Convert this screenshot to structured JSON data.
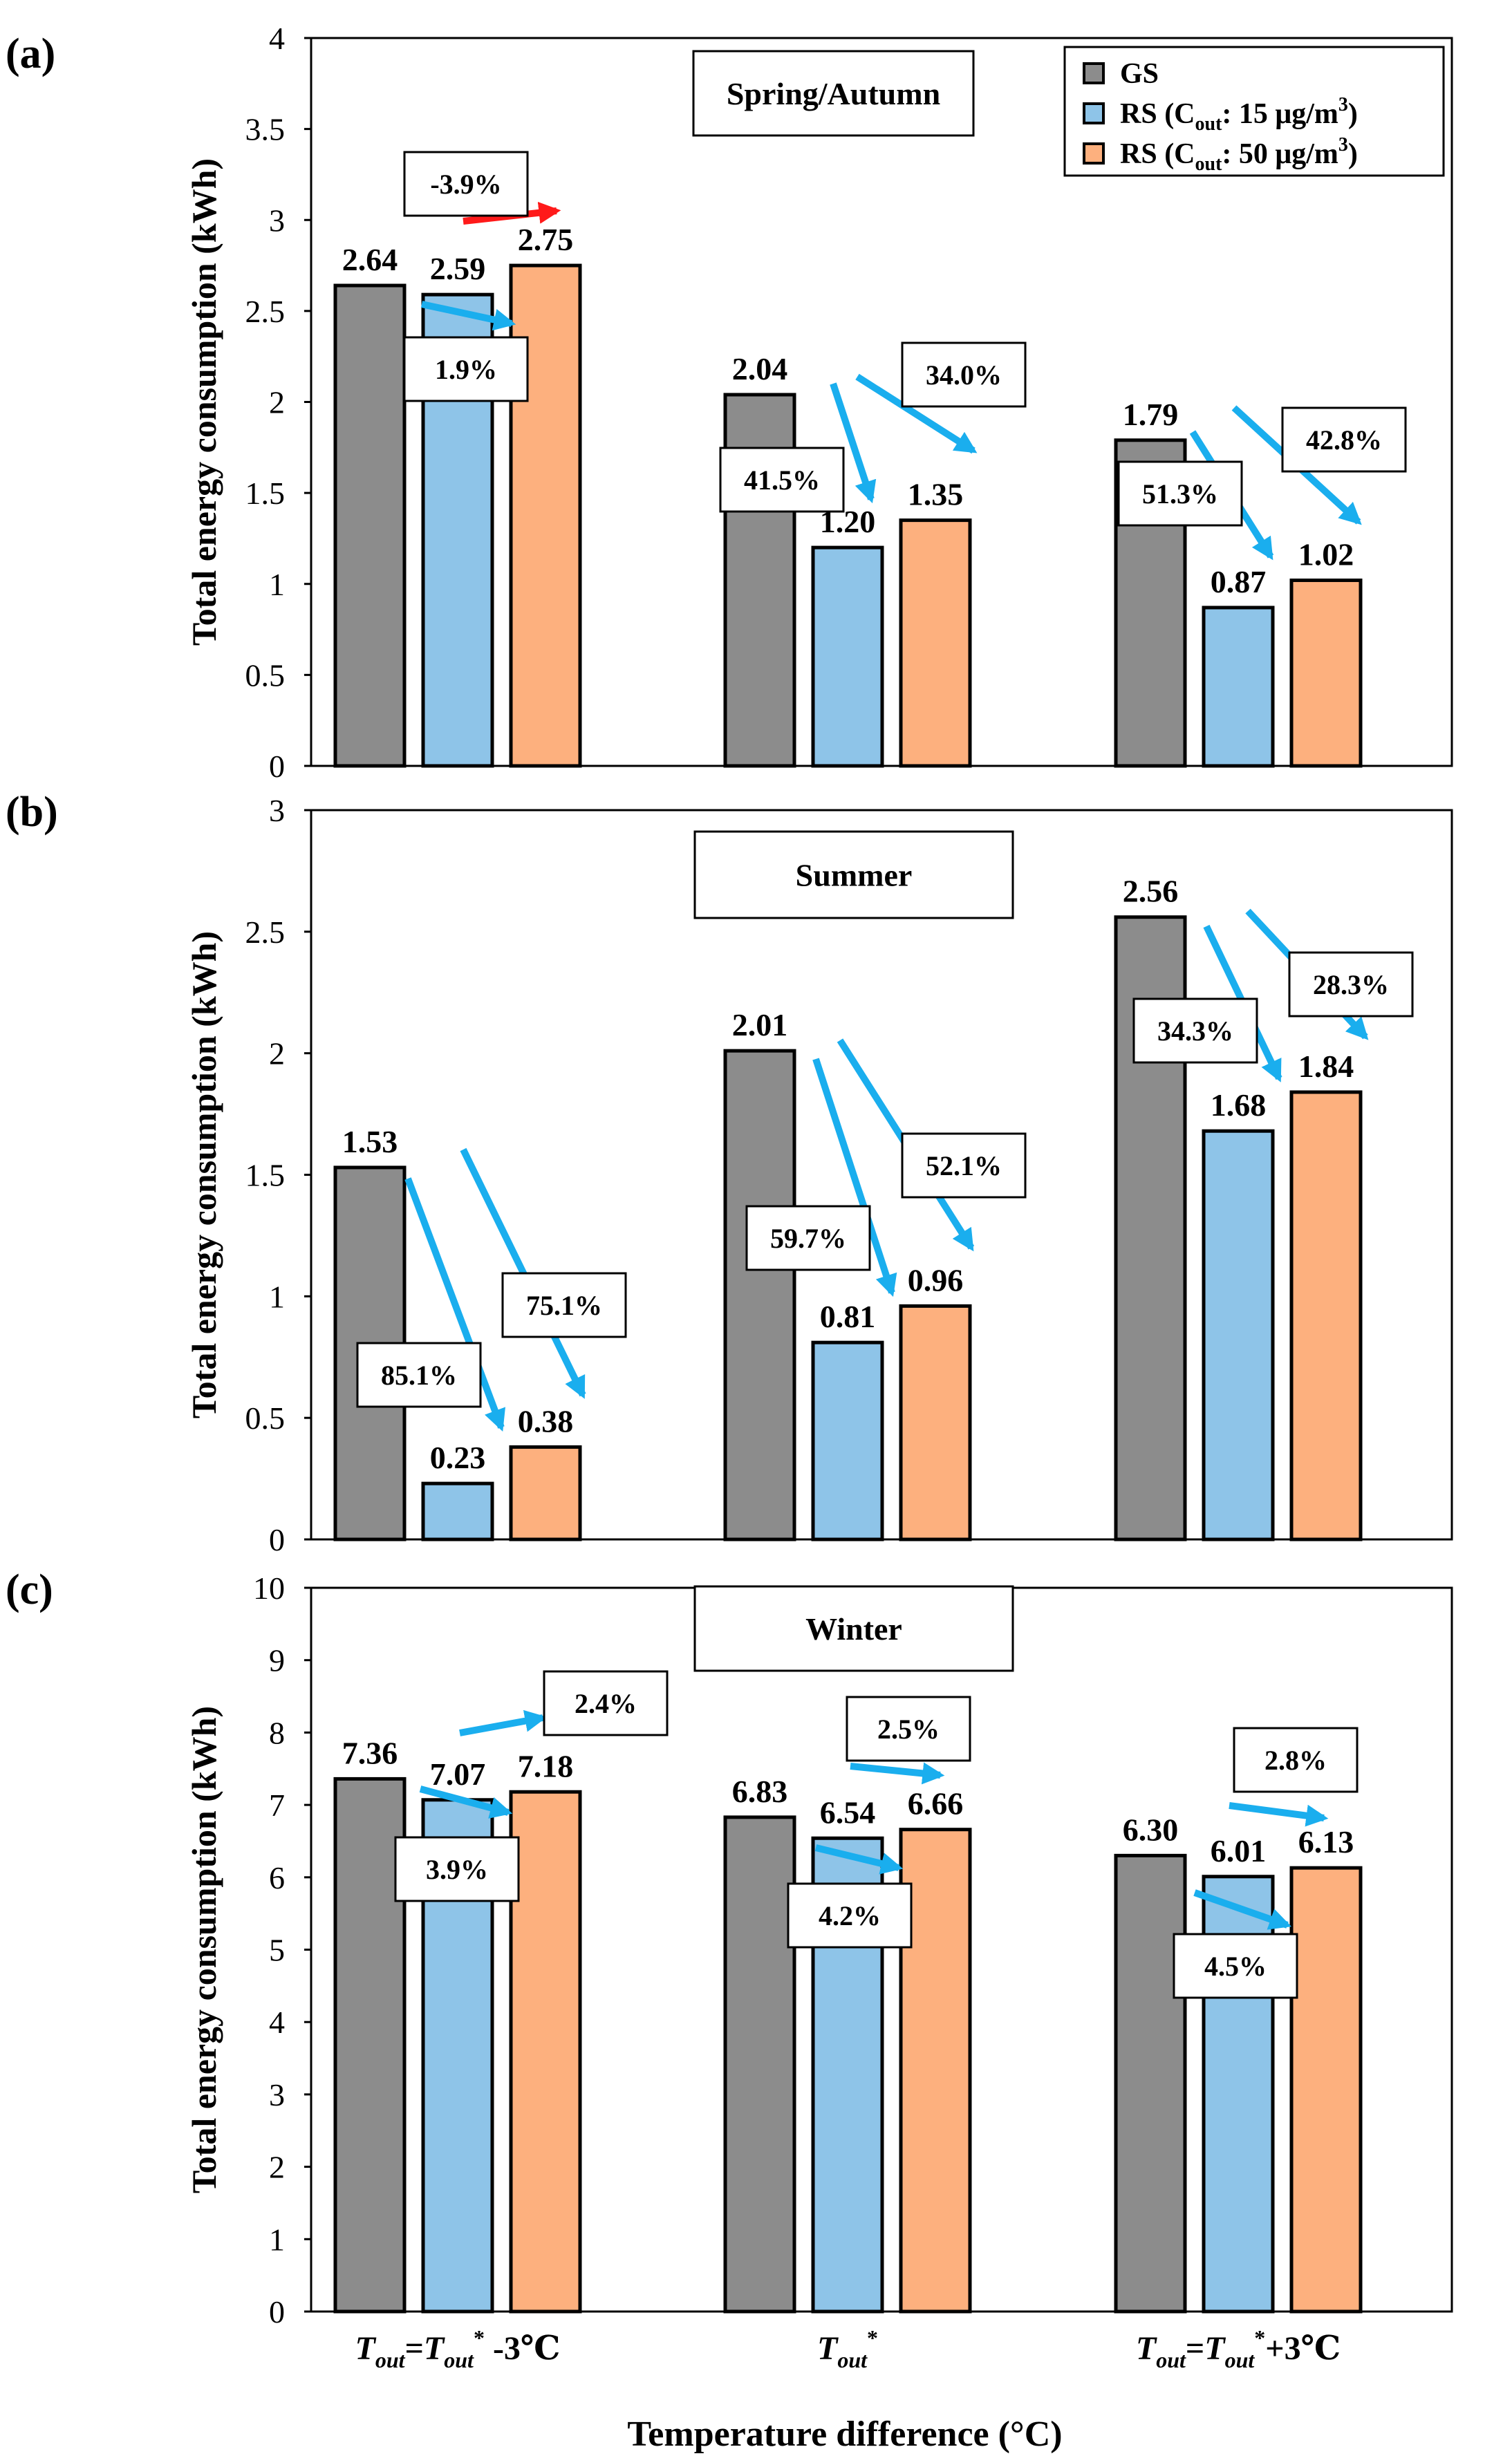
{
  "colors": {
    "GS": "#8c8c8c",
    "RS15": "#8ec4e8",
    "RS50": "#fdb07e",
    "arrow_main": "#1aaeee",
    "arrow_red": "#ff1a1a",
    "frame": "#000000"
  },
  "legend": {
    "items": [
      {
        "key": "GS",
        "label": "GS"
      },
      {
        "key": "RS15",
        "label": "RS (C",
        "sub": "out",
        "mid": ": 15 μg/m",
        "sup": "3",
        "end": ")"
      },
      {
        "key": "RS50",
        "label": "RS (C",
        "sub": "out",
        "mid": ": 50 μg/m",
        "sup": "3",
        "end": ")"
      }
    ]
  },
  "xaxis": {
    "title": "Temperature difference (°C)",
    "categories": [
      {
        "t1": "T",
        "s1": "out",
        "eq": "=",
        "t2": "T",
        "s2": "out",
        "star": "*",
        "tail": " -3℃"
      },
      {
        "t1": "T",
        "s1": "out",
        "eq": "",
        "t2": "",
        "s2": "",
        "star": "*",
        "tail": ""
      },
      {
        "t1": "T",
        "s1": "out",
        "eq": "=",
        "t2": "T",
        "s2": "out",
        "star": "*",
        "tail": "+3℃"
      }
    ]
  },
  "chart_data": [
    {
      "type": "bar",
      "panel": "(a)",
      "title": "Spring/Autumn",
      "ylabel": "Total energy consumption (kWh)",
      "ylim": [
        0,
        4
      ],
      "yticks": [
        "0",
        "0.5",
        "1",
        "1.5",
        "2",
        "2.5",
        "3",
        "3.5",
        "4"
      ],
      "ytick_values": [
        0,
        0.5,
        1,
        1.5,
        2,
        2.5,
        3,
        3.5,
        4
      ],
      "series": [
        {
          "name": "GS",
          "key": "GS",
          "values": [
            2.64,
            2.04,
            1.79
          ],
          "labels": [
            "2.64",
            "2.04",
            "1.79"
          ]
        },
        {
          "name": "RS (Cout: 15 μg/m3)",
          "key": "RS15",
          "values": [
            2.59,
            1.2,
            0.87
          ],
          "labels": [
            "2.59",
            "1.20",
            "0.87"
          ]
        },
        {
          "name": "RS (Cout: 50 μg/m3)",
          "key": "RS50",
          "values": [
            2.75,
            1.35,
            1.02
          ],
          "labels": [
            "2.75",
            "1.35",
            "1.02"
          ]
        }
      ],
      "annotations": [
        {
          "text": "-3.9%",
          "color": "red"
        },
        {
          "text": "1.9%",
          "color": "blue"
        },
        {
          "text": "41.5%",
          "color": "blue"
        },
        {
          "text": "34.0%",
          "color": "blue"
        },
        {
          "text": "51.3%",
          "color": "blue"
        },
        {
          "text": "42.8%",
          "color": "blue"
        }
      ]
    },
    {
      "type": "bar",
      "panel": "(b)",
      "title": "Summer",
      "ylabel": "Total energy consumption (kWh)",
      "ylim": [
        0,
        3
      ],
      "yticks": [
        "0",
        "0.5",
        "1",
        "1.5",
        "2",
        "2.5",
        "3"
      ],
      "ytick_values": [
        0,
        0.5,
        1,
        1.5,
        2,
        2.5,
        3
      ],
      "series": [
        {
          "name": "GS",
          "key": "GS",
          "values": [
            1.53,
            2.01,
            2.56
          ],
          "labels": [
            "1.53",
            "2.01",
            "2.56"
          ]
        },
        {
          "name": "RS (Cout: 15 μg/m3)",
          "key": "RS15",
          "values": [
            0.23,
            0.81,
            1.68
          ],
          "labels": [
            "0.23",
            "0.81",
            "1.68"
          ]
        },
        {
          "name": "RS (Cout: 50 μg/m3)",
          "key": "RS50",
          "values": [
            0.38,
            0.96,
            1.84
          ],
          "labels": [
            "0.38",
            "0.96",
            "1.84"
          ]
        }
      ],
      "annotations": [
        {
          "text": "85.1%",
          "color": "blue"
        },
        {
          "text": "75.1%",
          "color": "blue"
        },
        {
          "text": "59.7%",
          "color": "blue"
        },
        {
          "text": "52.1%",
          "color": "blue"
        },
        {
          "text": "34.3%",
          "color": "blue"
        },
        {
          "text": "28.3%",
          "color": "blue"
        }
      ]
    },
    {
      "type": "bar",
      "panel": "(c)",
      "title": "Winter",
      "ylabel": "Total energy consumption (kWh)",
      "ylim": [
        0,
        10
      ],
      "yticks": [
        "0",
        "1",
        "2",
        "3",
        "4",
        "5",
        "6",
        "7",
        "8",
        "9",
        "10"
      ],
      "ytick_values": [
        0,
        1,
        2,
        3,
        4,
        5,
        6,
        7,
        8,
        9,
        10
      ],
      "series": [
        {
          "name": "GS",
          "key": "GS",
          "values": [
            7.36,
            6.83,
            6.3
          ],
          "labels": [
            "7.36",
            "6.83",
            "6.30"
          ]
        },
        {
          "name": "RS (Cout: 15 μg/m3)",
          "key": "RS15",
          "values": [
            7.07,
            6.54,
            6.01
          ],
          "labels": [
            "7.07",
            "6.54",
            "6.01"
          ]
        },
        {
          "name": "RS (Cout: 50 μg/m3)",
          "key": "RS50",
          "values": [
            7.18,
            6.66,
            6.13
          ],
          "labels": [
            "7.18",
            "6.66",
            "6.13"
          ]
        }
      ],
      "annotations": [
        {
          "text": "2.4%",
          "color": "blue"
        },
        {
          "text": "3.9%",
          "color": "blue"
        },
        {
          "text": "2.5%",
          "color": "blue"
        },
        {
          "text": "4.2%",
          "color": "blue"
        },
        {
          "text": "2.8%",
          "color": "blue"
        },
        {
          "text": "4.5%",
          "color": "blue"
        }
      ]
    }
  ]
}
